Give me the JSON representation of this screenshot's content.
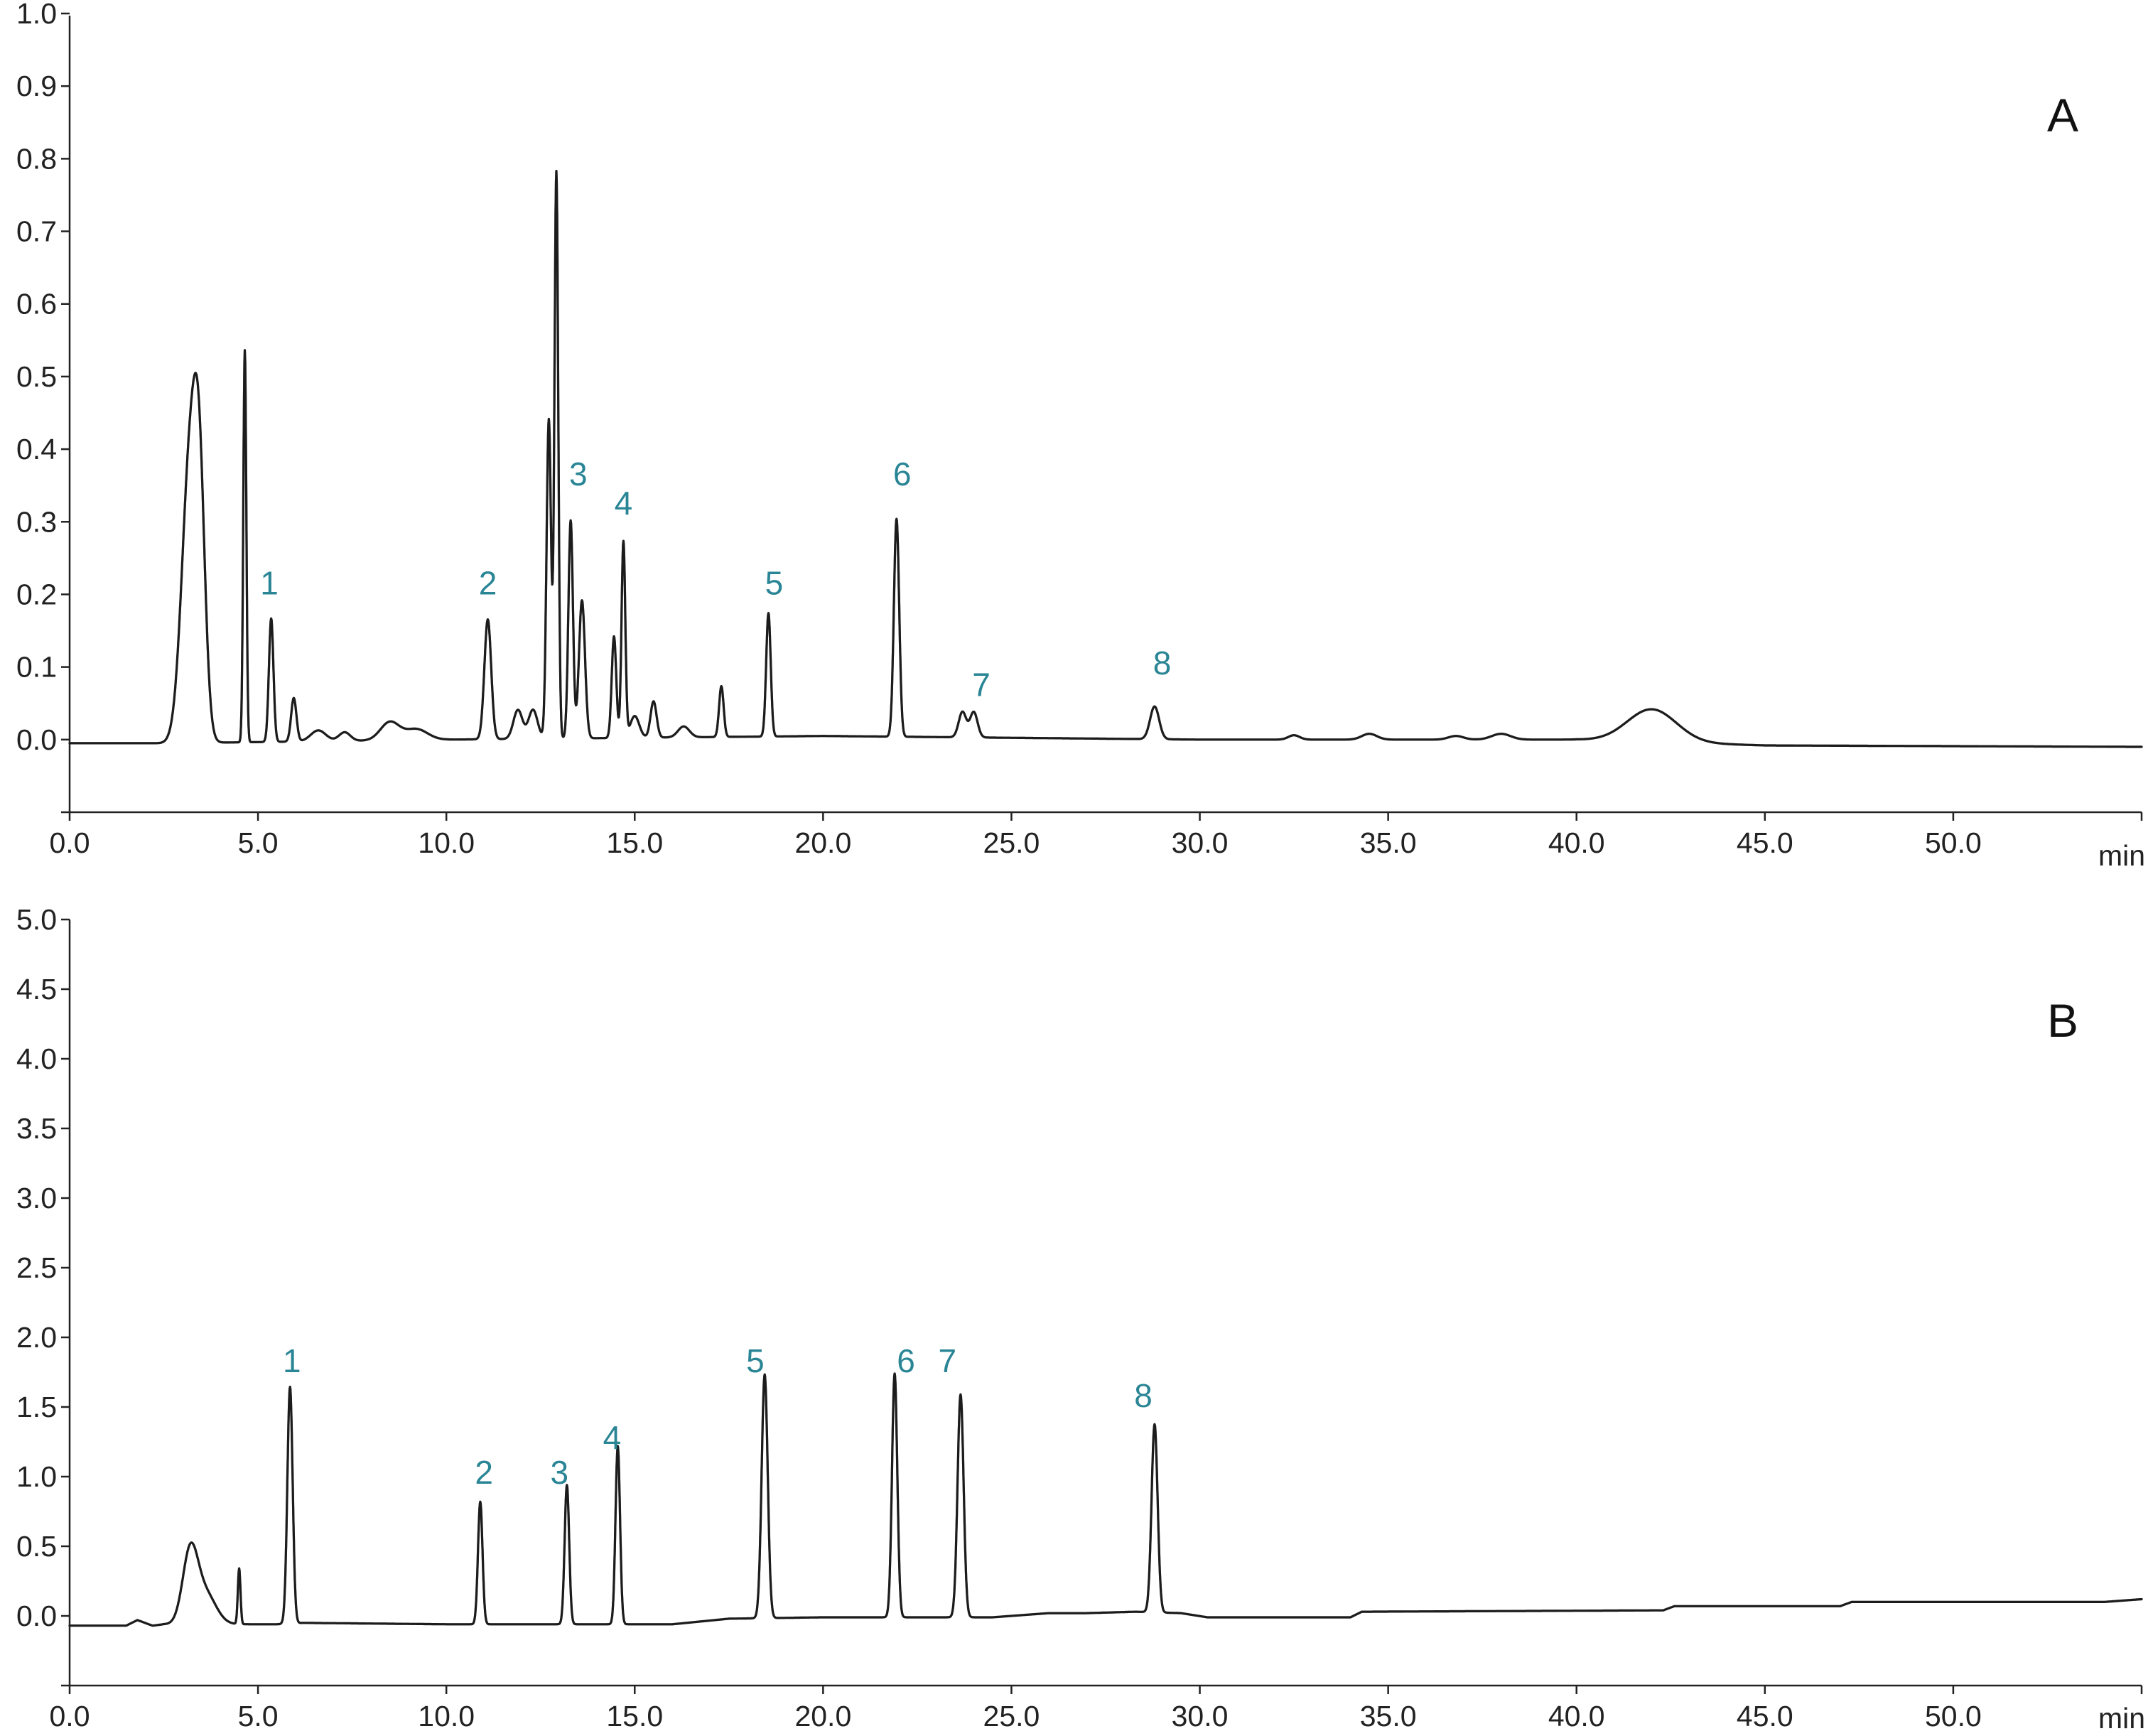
{
  "chart_data": [
    {
      "type": "line",
      "panel_label": "A",
      "x_unit_label": "min",
      "xlim": [
        0,
        55
      ],
      "ylim": [
        -0.1,
        1.0
      ],
      "x_ticks": [
        "0.0",
        "5.0",
        "10.0",
        "15.0",
        "20.0",
        "25.0",
        "30.0",
        "35.0",
        "40.0",
        "45.0",
        "50.0"
      ],
      "y_ticks": [
        "0.0",
        "0.1",
        "0.2",
        "0.3",
        "0.4",
        "0.5",
        "0.6",
        "0.7",
        "0.8",
        "0.9",
        "1.0"
      ],
      "grid": false,
      "baseline": [
        [
          0,
          -0.005
        ],
        [
          2.7,
          -0.005
        ],
        [
          10,
          0.0
        ],
        [
          20,
          0.005
        ],
        [
          30,
          0.0
        ],
        [
          40,
          0.0
        ],
        [
          45,
          -0.008
        ],
        [
          55,
          -0.01
        ]
      ],
      "peaks": [
        {
          "rt": 3.2,
          "height": 0.39,
          "width": 0.22
        },
        {
          "rt": 3.45,
          "height": 0.25,
          "width": 0.15
        },
        {
          "rt": 4.65,
          "height": 0.54,
          "width": 0.04
        },
        {
          "rt": 5.35,
          "height": 0.17,
          "width": 0.06
        },
        {
          "rt": 5.95,
          "height": 0.06,
          "width": 0.07
        },
        {
          "rt": 6.6,
          "height": 0.015,
          "width": 0.2
        },
        {
          "rt": 7.3,
          "height": 0.012,
          "width": 0.15
        },
        {
          "rt": 8.5,
          "height": 0.025,
          "width": 0.25
        },
        {
          "rt": 9.2,
          "height": 0.015,
          "width": 0.3
        },
        {
          "rt": 11.1,
          "height": 0.165,
          "width": 0.09
        },
        {
          "rt": 11.9,
          "height": 0.04,
          "width": 0.12
        },
        {
          "rt": 12.3,
          "height": 0.04,
          "width": 0.12
        },
        {
          "rt": 12.72,
          "height": 0.44,
          "width": 0.06
        },
        {
          "rt": 12.92,
          "height": 0.78,
          "width": 0.05
        },
        {
          "rt": 13.3,
          "height": 0.3,
          "width": 0.06
        },
        {
          "rt": 13.6,
          "height": 0.19,
          "width": 0.08
        },
        {
          "rt": 14.45,
          "height": 0.14,
          "width": 0.06
        },
        {
          "rt": 14.7,
          "height": 0.27,
          "width": 0.05
        },
        {
          "rt": 15.0,
          "height": 0.03,
          "width": 0.12
        },
        {
          "rt": 15.5,
          "height": 0.05,
          "width": 0.08
        },
        {
          "rt": 16.3,
          "height": 0.015,
          "width": 0.15
        },
        {
          "rt": 17.3,
          "height": 0.07,
          "width": 0.06
        },
        {
          "rt": 18.55,
          "height": 0.17,
          "width": 0.06
        },
        {
          "rt": 21.95,
          "height": 0.3,
          "width": 0.07
        },
        {
          "rt": 23.7,
          "height": 0.035,
          "width": 0.1
        },
        {
          "rt": 24.0,
          "height": 0.035,
          "width": 0.1
        },
        {
          "rt": 28.8,
          "height": 0.045,
          "width": 0.12
        },
        {
          "rt": 32.5,
          "height": 0.006,
          "width": 0.15
        },
        {
          "rt": 34.5,
          "height": 0.008,
          "width": 0.2
        },
        {
          "rt": 36.8,
          "height": 0.005,
          "width": 0.2
        },
        {
          "rt": 38.0,
          "height": 0.008,
          "width": 0.25
        },
        {
          "rt": 42.0,
          "height": 0.045,
          "width": 0.65
        }
      ],
      "peak_labels": [
        {
          "text": "1",
          "x": 5.3,
          "y": 0.2
        },
        {
          "text": "2",
          "x": 11.1,
          "y": 0.2
        },
        {
          "text": "3",
          "x": 13.5,
          "y": 0.35
        },
        {
          "text": "4",
          "x": 14.7,
          "y": 0.31
        },
        {
          "text": "5",
          "x": 18.7,
          "y": 0.2
        },
        {
          "text": "6",
          "x": 22.1,
          "y": 0.35
        },
        {
          "text": "7",
          "x": 24.2,
          "y": 0.06
        },
        {
          "text": "8",
          "x": 29.0,
          "y": 0.09
        }
      ]
    },
    {
      "type": "line",
      "panel_label": "B",
      "x_unit_label": "min",
      "xlim": [
        0,
        55
      ],
      "ylim": [
        -0.5,
        5.0
      ],
      "x_ticks": [
        "0.0",
        "5.0",
        "10.0",
        "15.0",
        "20.0",
        "25.0",
        "30.0",
        "35.0",
        "40.0",
        "45.0",
        "50.0"
      ],
      "y_ticks": [
        "0.0",
        "0.5",
        "1.0",
        "1.5",
        "2.0",
        "2.5",
        "3.0",
        "3.5",
        "4.0",
        "4.5",
        "5.0"
      ],
      "grid": false,
      "baseline": [
        [
          0,
          -0.07
        ],
        [
          1.5,
          -0.07
        ],
        [
          1.8,
          -0.03
        ],
        [
          2.2,
          -0.07
        ],
        [
          2.5,
          -0.06
        ],
        [
          5.5,
          -0.06
        ],
        [
          6.2,
          -0.05
        ],
        [
          10.0,
          -0.06
        ],
        [
          16.0,
          -0.06
        ],
        [
          17.5,
          -0.02
        ],
        [
          20.0,
          -0.01
        ],
        [
          24.5,
          -0.01
        ],
        [
          26.0,
          0.02
        ],
        [
          27.0,
          0.02
        ],
        [
          28.3,
          0.03
        ],
        [
          29.5,
          0.02
        ],
        [
          30.2,
          -0.01
        ],
        [
          34.0,
          -0.01
        ],
        [
          34.3,
          0.03
        ],
        [
          42.3,
          0.04
        ],
        [
          42.6,
          0.07
        ],
        [
          47.0,
          0.07
        ],
        [
          47.3,
          0.1
        ],
        [
          54.0,
          0.1
        ],
        [
          55.0,
          0.12
        ]
      ],
      "peaks": [
        {
          "rt": 3.2,
          "height": 0.5,
          "width": 0.2
        },
        {
          "rt": 3.6,
          "height": 0.22,
          "width": 0.28
        },
        {
          "rt": 4.5,
          "height": 0.4,
          "width": 0.035
        },
        {
          "rt": 5.85,
          "height": 1.7,
          "width": 0.07
        },
        {
          "rt": 10.9,
          "height": 0.88,
          "width": 0.06
        },
        {
          "rt": 13.2,
          "height": 1.0,
          "width": 0.06
        },
        {
          "rt": 14.55,
          "height": 1.28,
          "width": 0.06
        },
        {
          "rt": 18.45,
          "height": 1.75,
          "width": 0.08
        },
        {
          "rt": 21.9,
          "height": 1.75,
          "width": 0.07
        },
        {
          "rt": 23.65,
          "height": 1.6,
          "width": 0.08
        },
        {
          "rt": 28.8,
          "height": 1.35,
          "width": 0.08
        }
      ],
      "peak_labels": [
        {
          "text": "1",
          "x": 5.9,
          "y": 1.75
        },
        {
          "text": "2",
          "x": 11.0,
          "y": 0.95
        },
        {
          "text": "3",
          "x": 13.0,
          "y": 0.95
        },
        {
          "text": "4",
          "x": 14.4,
          "y": 1.2
        },
        {
          "text": "5",
          "x": 18.2,
          "y": 1.75
        },
        {
          "text": "6",
          "x": 22.2,
          "y": 1.75
        },
        {
          "text": "7",
          "x": 23.3,
          "y": 1.75
        },
        {
          "text": "8",
          "x": 28.5,
          "y": 1.5
        }
      ]
    }
  ],
  "colors": {
    "trace_light": "#8a8a8a",
    "trace_dark": "#1c1c1c",
    "axis": "#222222",
    "peak_label": "#2a8595",
    "tick_text": "#222222"
  }
}
